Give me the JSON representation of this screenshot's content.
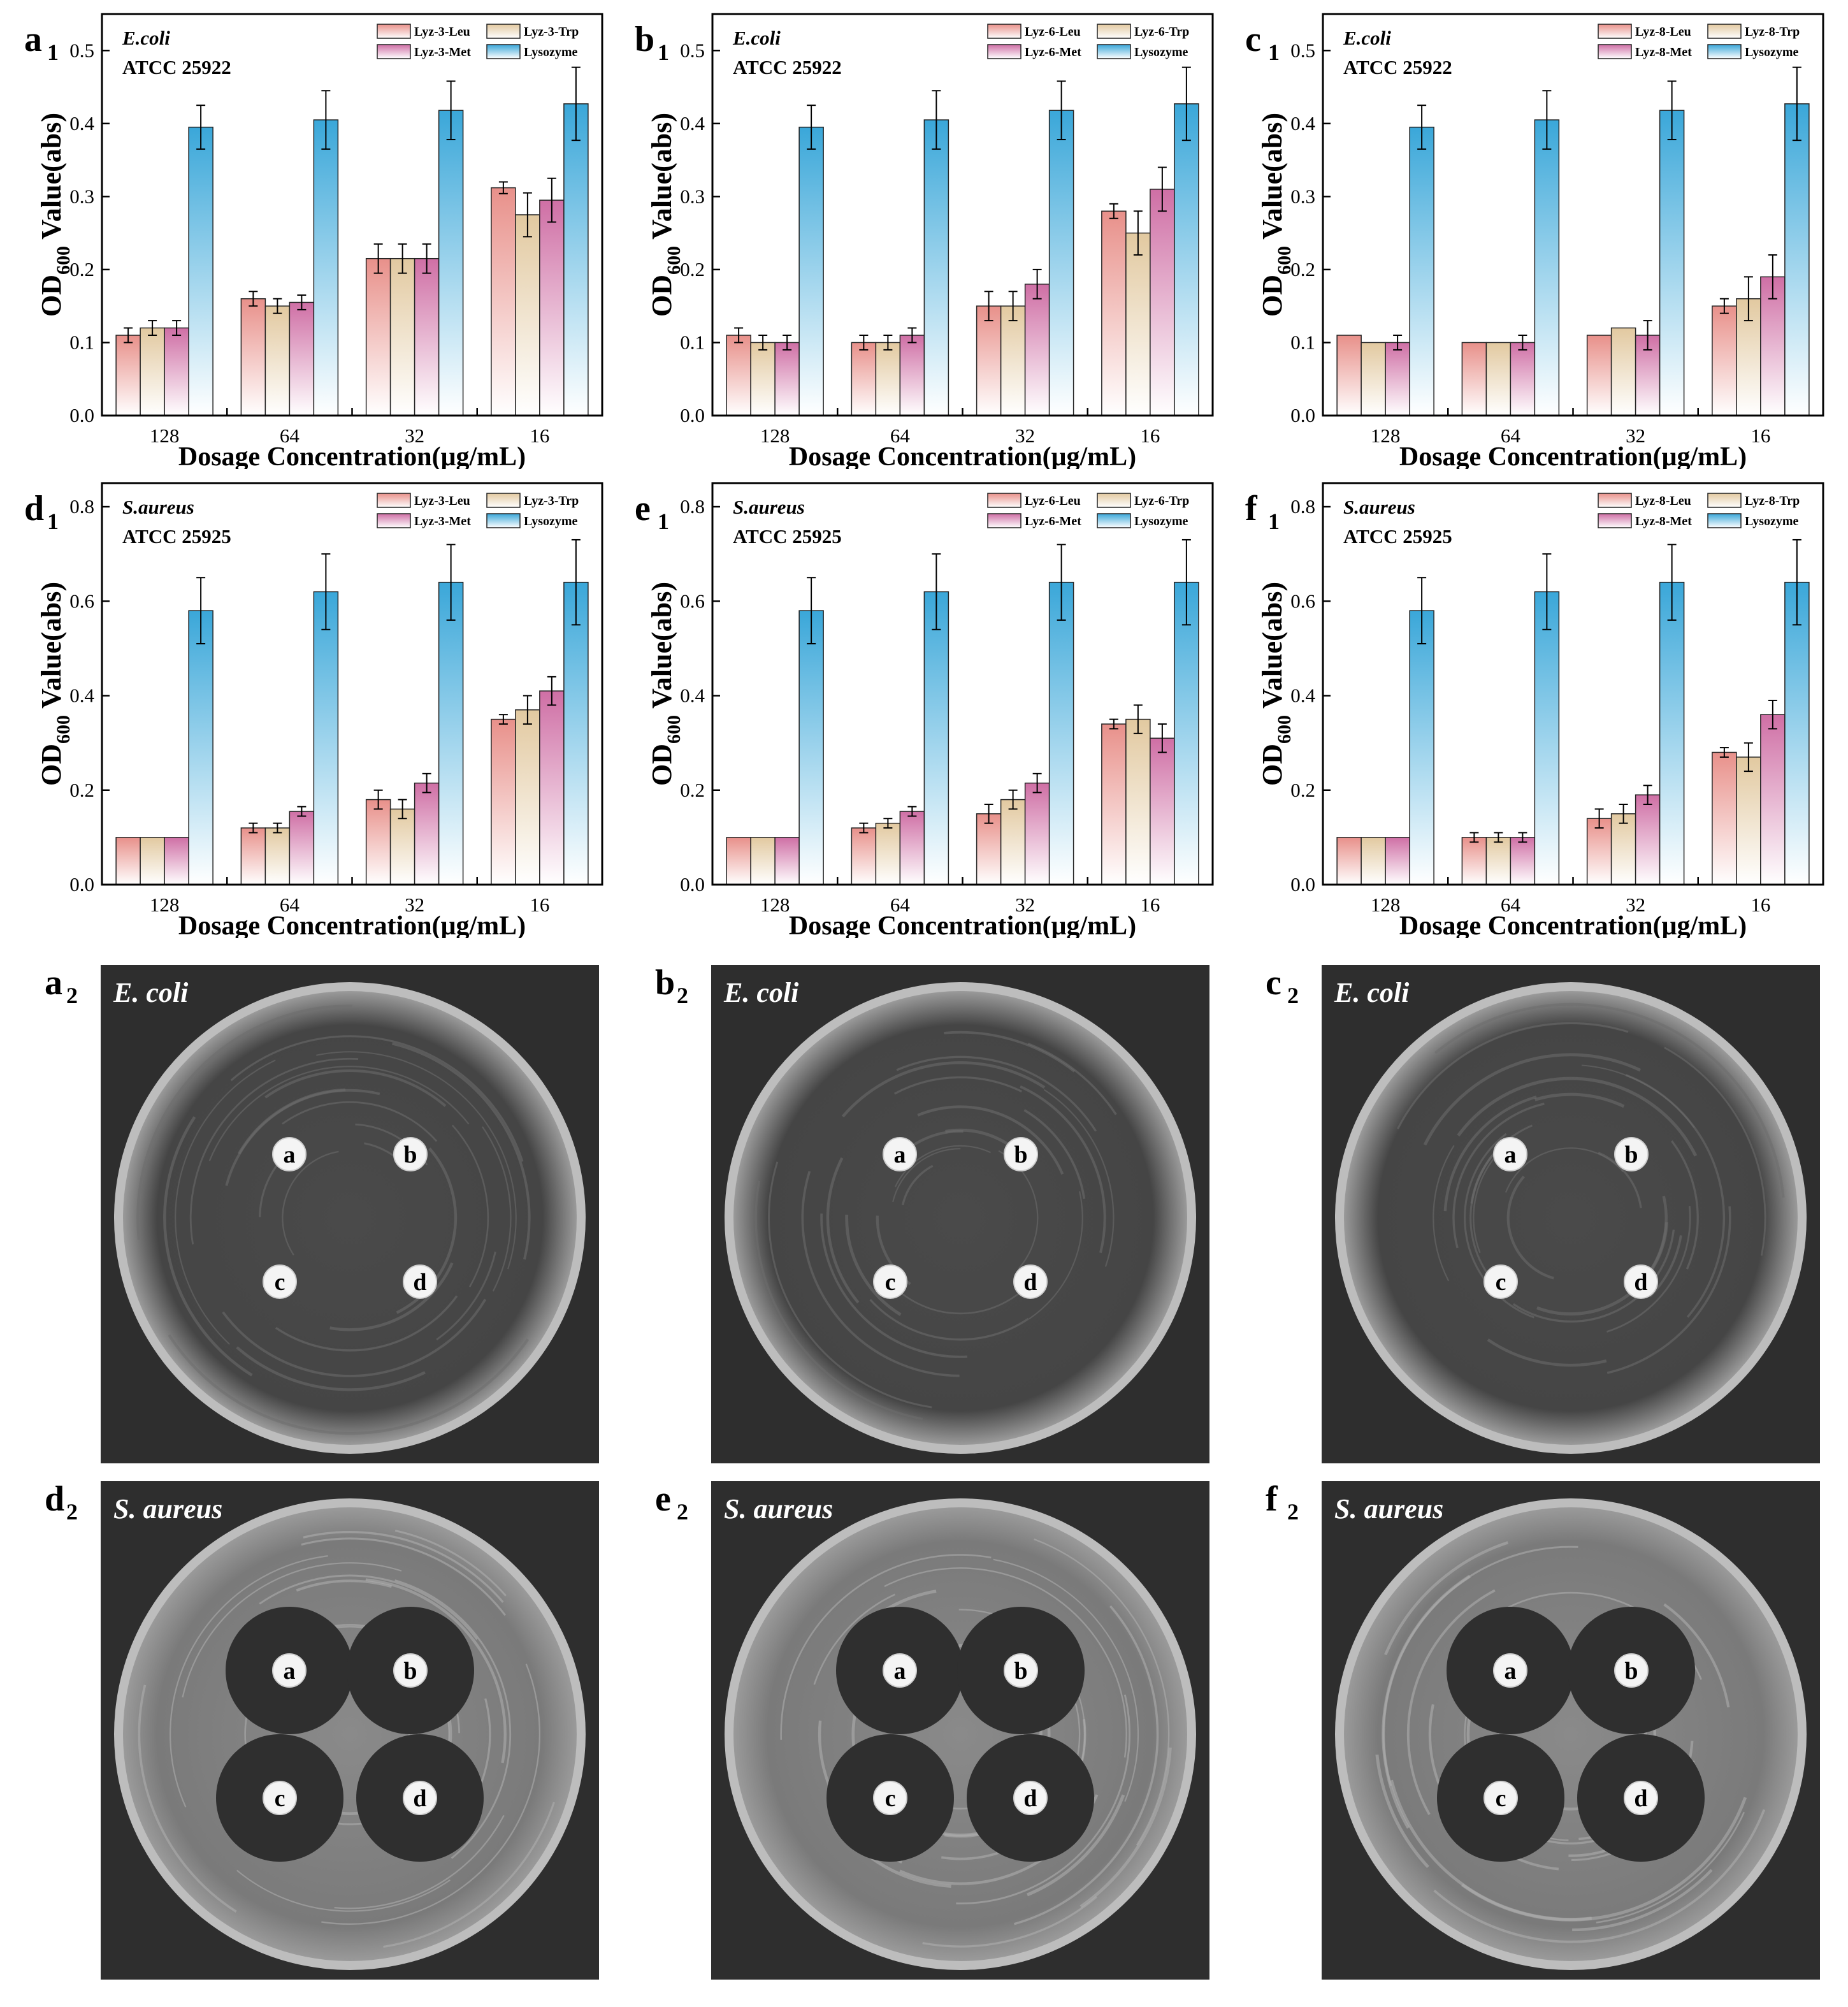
{
  "shared": {
    "categories": [
      "128",
      "64",
      "32",
      "16"
    ],
    "xlabel": "Dosage Concentration(μg/mL)",
    "ylabel_prefix": "OD",
    "ylabel_sub": "600",
    "ylabel_suffix": " Value(abs)",
    "colors": {
      "leu": [
        "#e8908a",
        "#ffffff"
      ],
      "trp": [
        "#e2c9a0",
        "#ffffff"
      ],
      "met": [
        "#cf6fa5",
        "#ffffff"
      ],
      "lys": [
        "#3aa7d9",
        "#ffffff"
      ]
    }
  },
  "charts": [
    {
      "panel": "a",
      "sub": "1",
      "bacteria": "E.coli",
      "strain": "ATCC 25922",
      "yticks": [
        "0.0",
        "0.1",
        "0.2",
        "0.3",
        "0.4",
        "0.5"
      ],
      "legend": [
        "Lyz-3-Leu",
        "Lyz-3-Trp",
        "Lyz-3-Met",
        "Lysozyme"
      ],
      "chart_data": {
        "type": "bar",
        "ylim": [
          0,
          0.55
        ],
        "categories": [
          "128",
          "64",
          "32",
          "16"
        ],
        "series": [
          {
            "name": "Lyz-3-Leu",
            "values": [
              0.11,
              0.16,
              0.215,
              0.312
            ],
            "errors": [
              0.01,
              0.01,
              0.02,
              0.008
            ]
          },
          {
            "name": "Lyz-3-Trp",
            "values": [
              0.12,
              0.15,
              0.215,
              0.275
            ],
            "errors": [
              0.01,
              0.01,
              0.02,
              0.03
            ]
          },
          {
            "name": "Lyz-3-Met",
            "values": [
              0.12,
              0.155,
              0.215,
              0.295
            ],
            "errors": [
              0.01,
              0.01,
              0.02,
              0.03
            ]
          },
          {
            "name": "Lysozyme",
            "values": [
              0.395,
              0.405,
              0.418,
              0.427
            ],
            "errors": [
              0.03,
              0.04,
              0.04,
              0.05
            ]
          }
        ]
      }
    },
    {
      "panel": "b",
      "sub": "1",
      "bacteria": "E.coli",
      "strain": "ATCC 25922",
      "yticks": [
        "0.0",
        "0.1",
        "0.2",
        "0.3",
        "0.4",
        "0.5"
      ],
      "legend": [
        "Lyz-6-Leu",
        "Lyz-6-Trp",
        "Lyz-6-Met",
        "Lysozyme"
      ],
      "chart_data": {
        "type": "bar",
        "ylim": [
          0,
          0.55
        ],
        "categories": [
          "128",
          "64",
          "32",
          "16"
        ],
        "series": [
          {
            "name": "Lyz-6-Leu",
            "values": [
              0.11,
              0.1,
              0.15,
              0.28
            ],
            "errors": [
              0.01,
              0.01,
              0.02,
              0.01
            ]
          },
          {
            "name": "Lyz-6-Trp",
            "values": [
              0.1,
              0.1,
              0.15,
              0.25
            ],
            "errors": [
              0.01,
              0.01,
              0.02,
              0.03
            ]
          },
          {
            "name": "Lyz-6-Met",
            "values": [
              0.1,
              0.11,
              0.18,
              0.31
            ],
            "errors": [
              0.01,
              0.01,
              0.02,
              0.03
            ]
          },
          {
            "name": "Lysozyme",
            "values": [
              0.395,
              0.405,
              0.418,
              0.427
            ],
            "errors": [
              0.03,
              0.04,
              0.04,
              0.05
            ]
          }
        ]
      }
    },
    {
      "panel": "c",
      "sub": "1",
      "bacteria": "E.coli",
      "strain": "ATCC 25922",
      "yticks": [
        "0.0",
        "0.1",
        "0.2",
        "0.3",
        "0.4",
        "0.5"
      ],
      "legend": [
        "Lyz-8-Leu",
        "Lyz-8-Trp",
        "Lyz-8-Met",
        "Lysozyme"
      ],
      "chart_data": {
        "type": "bar",
        "ylim": [
          0,
          0.55
        ],
        "categories": [
          "128",
          "64",
          "32",
          "16"
        ],
        "series": [
          {
            "name": "Lyz-8-Leu",
            "values": [
              0.11,
              0.1,
              0.11,
              0.15
            ],
            "errors": [
              0,
              0,
              0,
              0.01
            ]
          },
          {
            "name": "Lyz-8-Trp",
            "values": [
              0.1,
              0.1,
              0.12,
              0.16
            ],
            "errors": [
              0,
              0,
              0,
              0.03
            ]
          },
          {
            "name": "Lyz-8-Met",
            "values": [
              0.1,
              0.1,
              0.11,
              0.19
            ],
            "errors": [
              0.01,
              0.01,
              0.02,
              0.03
            ]
          },
          {
            "name": "Lysozyme",
            "values": [
              0.395,
              0.405,
              0.418,
              0.427
            ],
            "errors": [
              0.03,
              0.04,
              0.04,
              0.05
            ]
          }
        ]
      }
    },
    {
      "panel": "d",
      "sub": "1",
      "bacteria": "S.aureus",
      "strain": "ATCC 25925",
      "yticks": [
        "0.0",
        "0.2",
        "0.4",
        "0.6",
        "0.8"
      ],
      "legend": [
        "Lyz-3-Leu",
        "Lyz-3-Trp",
        "Lyz-3-Met",
        "Lysozyme"
      ],
      "chart_data": {
        "type": "bar",
        "ylim": [
          0,
          0.85
        ],
        "categories": [
          "128",
          "64",
          "32",
          "16"
        ],
        "series": [
          {
            "name": "Lyz-3-Leu",
            "values": [
              0.1,
              0.12,
              0.18,
              0.35
            ],
            "errors": [
              0,
              0.01,
              0.02,
              0.01
            ]
          },
          {
            "name": "Lyz-3-Trp",
            "values": [
              0.1,
              0.12,
              0.16,
              0.37
            ],
            "errors": [
              0,
              0.01,
              0.02,
              0.03
            ]
          },
          {
            "name": "Lyz-3-Met",
            "values": [
              0.1,
              0.155,
              0.215,
              0.41
            ],
            "errors": [
              0,
              0.01,
              0.02,
              0.03
            ]
          },
          {
            "name": "Lysozyme",
            "values": [
              0.58,
              0.62,
              0.64,
              0.64
            ],
            "errors": [
              0.07,
              0.08,
              0.08,
              0.09
            ]
          }
        ]
      }
    },
    {
      "panel": "e",
      "sub": "1",
      "bacteria": "S.aureus",
      "strain": "ATCC 25925",
      "yticks": [
        "0.0",
        "0.2",
        "0.4",
        "0.6",
        "0.8"
      ],
      "legend": [
        "Lyz-6-Leu",
        "Lyz-6-Trp",
        "Lyz-6-Met",
        "Lysozyme"
      ],
      "chart_data": {
        "type": "bar",
        "ylim": [
          0,
          0.85
        ],
        "categories": [
          "128",
          "64",
          "32",
          "16"
        ],
        "series": [
          {
            "name": "Lyz-6-Leu",
            "values": [
              0.1,
              0.12,
              0.15,
              0.34
            ],
            "errors": [
              0,
              0.01,
              0.02,
              0.01
            ]
          },
          {
            "name": "Lyz-6-Trp",
            "values": [
              0.1,
              0.13,
              0.18,
              0.35
            ],
            "errors": [
              0,
              0.01,
              0.02,
              0.03
            ]
          },
          {
            "name": "Lyz-6-Met",
            "values": [
              0.1,
              0.155,
              0.215,
              0.31
            ],
            "errors": [
              0,
              0.01,
              0.02,
              0.03
            ]
          },
          {
            "name": "Lysozyme",
            "values": [
              0.58,
              0.62,
              0.64,
              0.64
            ],
            "errors": [
              0.07,
              0.08,
              0.08,
              0.09
            ]
          }
        ]
      }
    },
    {
      "panel": "f",
      "sub": "1",
      "bacteria": "S.aureus",
      "strain": "ATCC 25925",
      "yticks": [
        "0.0",
        "0.2",
        "0.4",
        "0.6",
        "0.8"
      ],
      "legend": [
        "Lyz-8-Leu",
        "Lyz-8-Trp",
        "Lyz-8-Met",
        "Lysozyme"
      ],
      "chart_data": {
        "type": "bar",
        "ylim": [
          0,
          0.85
        ],
        "categories": [
          "128",
          "64",
          "32",
          "16"
        ],
        "series": [
          {
            "name": "Lyz-8-Leu",
            "values": [
              0.1,
              0.1,
              0.14,
              0.28
            ],
            "errors": [
              0,
              0.01,
              0.02,
              0.01
            ]
          },
          {
            "name": "Lyz-8-Trp",
            "values": [
              0.1,
              0.1,
              0.15,
              0.27
            ],
            "errors": [
              0,
              0.01,
              0.02,
              0.03
            ]
          },
          {
            "name": "Lyz-8-Met",
            "values": [
              0.1,
              0.1,
              0.19,
              0.36
            ],
            "errors": [
              0,
              0.01,
              0.02,
              0.03
            ]
          },
          {
            "name": "Lysozyme",
            "values": [
              0.58,
              0.62,
              0.64,
              0.64
            ],
            "errors": [
              0.07,
              0.08,
              0.08,
              0.09
            ]
          }
        ]
      }
    }
  ],
  "photos": [
    {
      "panel": "a",
      "sub": "2",
      "title": "E. coli",
      "discs": [
        "a",
        "b",
        "c",
        "d"
      ],
      "zones": "none"
    },
    {
      "panel": "b",
      "sub": "2",
      "title": "E. coli",
      "discs": [
        "a",
        "b",
        "c",
        "d"
      ],
      "zones": "none"
    },
    {
      "panel": "c",
      "sub": "2",
      "title": "E. coli",
      "discs": [
        "a",
        "b",
        "c",
        "d"
      ],
      "zones": "none"
    },
    {
      "panel": "d",
      "sub": "2",
      "title": "S. aureus",
      "discs": [
        "a",
        "b",
        "c",
        "d"
      ],
      "zones": "clear"
    },
    {
      "panel": "e",
      "sub": "2",
      "title": "S. aureus",
      "discs": [
        "a",
        "b",
        "c",
        "d"
      ],
      "zones": "clear"
    },
    {
      "panel": "f",
      "sub": "2",
      "title": "S. aureus",
      "discs": [
        "a",
        "b",
        "c",
        "d"
      ],
      "zones": "clear"
    }
  ]
}
